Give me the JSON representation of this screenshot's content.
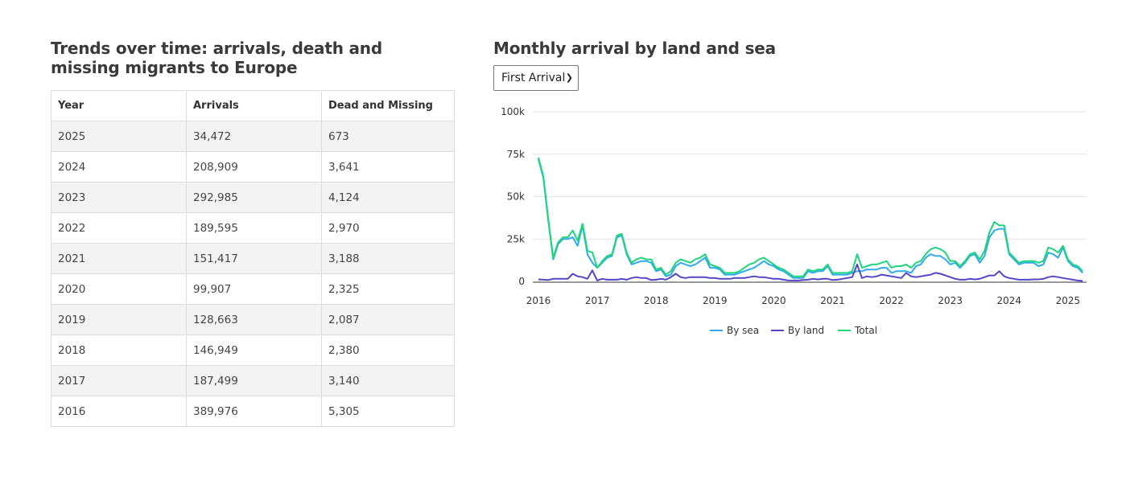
{
  "left": {
    "title": "Trends over time: arrivals, death and missing migrants to Europe",
    "table": {
      "headers": [
        "Year",
        "Arrivals",
        "Dead and Missing"
      ],
      "rows": [
        [
          "2025",
          "34,472",
          "673"
        ],
        [
          "2024",
          "208,909",
          "3,641"
        ],
        [
          "2023",
          "292,985",
          "4,124"
        ],
        [
          "2022",
          "189,595",
          "2,970"
        ],
        [
          "2021",
          "151,417",
          "3,188"
        ],
        [
          "2020",
          "99,907",
          "2,325"
        ],
        [
          "2019",
          "128,663",
          "2,087"
        ],
        [
          "2018",
          "146,949",
          "2,380"
        ],
        [
          "2017",
          "187,499",
          "3,140"
        ],
        [
          "2016",
          "389,976",
          "5,305"
        ]
      ]
    }
  },
  "right": {
    "title": "Monthly arrival by land and sea",
    "select": {
      "value": "First Arrival",
      "icon": "chevron-down-icon"
    }
  },
  "chart_data": {
    "type": "line",
    "title": "Monthly arrival by land and sea",
    "xlabel": "",
    "ylabel": "",
    "x_start": "2016-01",
    "x_ticks": [
      "2016",
      "2017",
      "2018",
      "2019",
      "2020",
      "2021",
      "2022",
      "2023",
      "2024",
      "2025"
    ],
    "y_ticks": [
      "0",
      "25k",
      "50k",
      "75k",
      "100k"
    ],
    "ylim": [
      0,
      100000
    ],
    "grid": true,
    "legend": "bottom",
    "series": [
      {
        "name": "By sea",
        "color": "#2eaaf0",
        "values": [
          72,
          61,
          36,
          13,
          22,
          25,
          25,
          26,
          21,
          33,
          16,
          11,
          8,
          11,
          14,
          15,
          26,
          27,
          16,
          10,
          11,
          12,
          12,
          11,
          6,
          7,
          3,
          4,
          9,
          11,
          10,
          9,
          10,
          12,
          14,
          8,
          8,
          7,
          4,
          4,
          4,
          5,
          6,
          7,
          8,
          10,
          12,
          10,
          9,
          7,
          6,
          4,
          2,
          2,
          2,
          6,
          5,
          6,
          6,
          9,
          4,
          4,
          4,
          4,
          5,
          6,
          6,
          7,
          7,
          7,
          8,
          8,
          5,
          6,
          6,
          6,
          5,
          9,
          10,
          14,
          16,
          15,
          15,
          13,
          10,
          11,
          8,
          11,
          15,
          16,
          11,
          15,
          26,
          30,
          31,
          31,
          16,
          13,
          10,
          11,
          11,
          11,
          9,
          10,
          17,
          16,
          14,
          20,
          12,
          9,
          8,
          5
        ]
      },
      {
        "name": "By land",
        "color": "#5246c8",
        "values": [
          1.2,
          1,
          0.8,
          1.5,
          1.5,
          1.5,
          1.5,
          4.5,
          3,
          2.5,
          1.5,
          6.5,
          0.5,
          1.5,
          1,
          1,
          1,
          1.5,
          1,
          2,
          2.5,
          2,
          2,
          0.8,
          1,
          1.5,
          1,
          2.5,
          4.5,
          2.5,
          2,
          2.5,
          2.5,
          2.5,
          2.5,
          2,
          2,
          1.5,
          1.5,
          1.5,
          2,
          2,
          2,
          2.5,
          3,
          2.5,
          2.5,
          2,
          1.5,
          1.5,
          1,
          0.5,
          0.5,
          0.5,
          0.8,
          1,
          1.5,
          1.2,
          1.5,
          1.5,
          0.8,
          1,
          1.5,
          2,
          2.5,
          10,
          2,
          3,
          2.5,
          3,
          4,
          3.5,
          3,
          2.5,
          2,
          5,
          3,
          2.5,
          3,
          3.5,
          4,
          5,
          4.5,
          3.5,
          2.5,
          1.5,
          1,
          1,
          1.5,
          1.2,
          1.5,
          2.5,
          3.5,
          3.5,
          6,
          3,
          2,
          1.5,
          1,
          1,
          1,
          1.2,
          1.2,
          1.5,
          2.5,
          3,
          2.5,
          2,
          1.5,
          1,
          0.5,
          0.3
        ]
      },
      {
        "name": "Total",
        "color": "#1ed67a",
        "values": [
          73,
          62,
          37,
          14,
          23,
          26,
          26,
          30,
          24,
          34,
          18,
          17,
          8,
          12,
          15,
          16,
          27,
          28,
          17,
          11,
          13,
          14,
          13,
          13,
          7,
          8,
          4,
          6,
          11,
          13,
          12,
          11,
          13,
          14,
          16,
          10,
          9,
          8,
          5,
          5,
          5,
          6,
          8,
          10,
          11,
          13,
          14,
          12,
          10,
          8,
          7,
          5,
          3,
          3,
          3,
          7,
          6,
          7,
          7,
          10,
          5,
          5,
          5,
          5,
          6,
          16,
          8,
          9,
          10,
          10,
          11,
          12,
          8,
          9,
          9,
          10,
          8,
          11,
          12,
          16,
          19,
          20,
          19,
          17,
          12,
          12,
          9,
          12,
          16,
          17,
          13,
          18,
          29,
          35,
          33,
          33,
          17,
          14,
          11,
          12,
          12,
          12,
          11,
          12,
          20,
          19,
          17,
          21,
          13,
          10,
          9,
          6
        ]
      }
    ],
    "units": "thousands"
  }
}
